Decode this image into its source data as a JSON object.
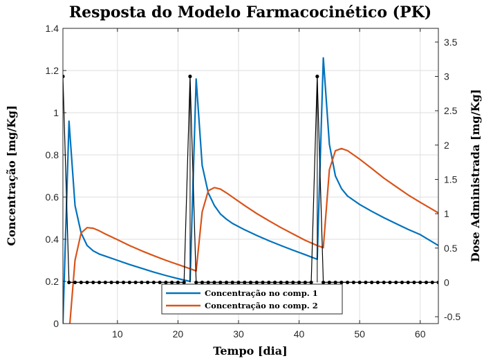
{
  "chart_data": {
    "type": "line",
    "title": "Resposta do Modelo Farmacocinético (PK)",
    "xlabel": "Tempo [dia]",
    "ylabel_left": "Concentração [mg/Kg]",
    "ylabel_right": "Dose Administrada [mg/Kg]",
    "xlim": [
      1,
      63
    ],
    "ylim_left": [
      0,
      1.4
    ],
    "ylim_right": [
      -0.6,
      3.7
    ],
    "xticks": [
      10,
      20,
      30,
      40,
      50,
      60
    ],
    "yticks_left": [
      0,
      0.2,
      0.4,
      0.6,
      0.8,
      1.0,
      1.2,
      1.4
    ],
    "yticks_right": [
      -0.5,
      0,
      0.5,
      1,
      1.5,
      2,
      2.5,
      3,
      3.5
    ],
    "ytick_labels_left": [
      "0",
      "0.2",
      "0.4",
      "0.6",
      "0.8",
      "1",
      "1.2",
      "1.4"
    ],
    "ytick_labels_right": [
      "-0.5",
      "0",
      "0.5",
      "1",
      "1.5",
      "2",
      "2.5",
      "3",
      "3.5"
    ],
    "grid": true,
    "legend_position": "bottom-center",
    "series": [
      {
        "name": "Concentração no comp. 1",
        "axis": "left",
        "color": "#0072BD",
        "x": [
          1,
          2,
          3,
          4,
          5,
          6,
          7,
          8,
          10,
          12,
          14,
          16,
          18,
          20,
          22,
          23,
          24,
          25,
          26,
          27,
          28,
          29,
          31,
          33,
          35,
          37,
          39,
          41,
          43,
          44,
          45,
          46,
          47,
          48,
          49,
          50,
          52,
          54,
          56,
          58,
          60,
          63
        ],
        "y": [
          0,
          0.96,
          0.56,
          0.43,
          0.37,
          0.345,
          0.33,
          0.32,
          0.3,
          0.28,
          0.262,
          0.244,
          0.228,
          0.213,
          0.2,
          1.16,
          0.75,
          0.62,
          0.56,
          0.52,
          0.495,
          0.475,
          0.445,
          0.418,
          0.393,
          0.37,
          0.348,
          0.327,
          0.305,
          1.26,
          0.85,
          0.7,
          0.64,
          0.605,
          0.585,
          0.565,
          0.532,
          0.502,
          0.474,
          0.447,
          0.422,
          0.37
        ]
      },
      {
        "name": "Concentração no comp. 2",
        "axis": "left",
        "color": "#D95319",
        "x": [
          1,
          2,
          3,
          4,
          5,
          6,
          7,
          8,
          10,
          12,
          14,
          16,
          18,
          20,
          22,
          23,
          24,
          25,
          26,
          27,
          28,
          29,
          31,
          33,
          35,
          37,
          39,
          41,
          43,
          44,
          45,
          46,
          47,
          48,
          49,
          50,
          52,
          54,
          56,
          58,
          60,
          63
        ],
        "y": [
          -0.2,
          -0.05,
          0.3,
          0.43,
          0.455,
          0.452,
          0.44,
          0.425,
          0.398,
          0.37,
          0.345,
          0.322,
          0.3,
          0.28,
          0.26,
          0.25,
          0.53,
          0.63,
          0.645,
          0.638,
          0.62,
          0.6,
          0.56,
          0.522,
          0.488,
          0.455,
          0.425,
          0.395,
          0.37,
          0.36,
          0.73,
          0.82,
          0.83,
          0.82,
          0.8,
          0.78,
          0.735,
          0.69,
          0.65,
          0.61,
          0.575,
          0.525
        ]
      },
      {
        "name": "Dose Administrada",
        "axis": "right",
        "color": "#000000",
        "marker": "dot",
        "x": [
          1,
          2,
          3,
          4,
          5,
          6,
          7,
          8,
          9,
          10,
          11,
          12,
          13,
          14,
          15,
          16,
          17,
          18,
          19,
          20,
          21,
          22,
          23,
          24,
          25,
          26,
          27,
          28,
          29,
          30,
          31,
          32,
          33,
          34,
          35,
          36,
          37,
          38,
          39,
          40,
          41,
          42,
          43,
          44,
          45,
          46,
          47,
          48,
          49,
          50,
          51,
          52,
          53,
          54,
          55,
          56,
          57,
          58,
          59,
          60,
          61,
          62,
          63
        ],
        "y": [
          3,
          0,
          0,
          0,
          0,
          0,
          0,
          0,
          0,
          0,
          0,
          0,
          0,
          0,
          0,
          0,
          0,
          0,
          0,
          0,
          0,
          3,
          0,
          0,
          0,
          0,
          0,
          0,
          0,
          0,
          0,
          0,
          0,
          0,
          0,
          0,
          0,
          0,
          0,
          0,
          0,
          0,
          3,
          0,
          0,
          0,
          0,
          0,
          0,
          0,
          0,
          0,
          0,
          0,
          0,
          0,
          0,
          0,
          0,
          0,
          0,
          0,
          0
        ]
      }
    ]
  }
}
